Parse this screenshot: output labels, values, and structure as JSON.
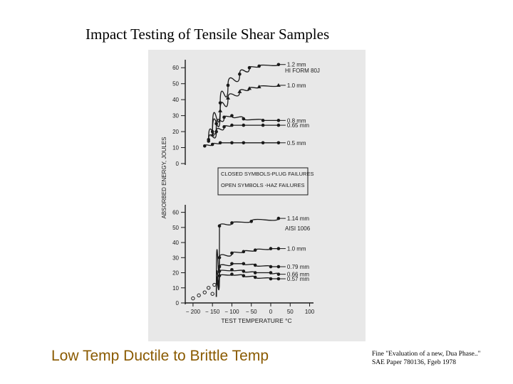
{
  "slide": {
    "title": "Impact Testing of Tensile Shear Samples",
    "caption": "Low Temp Ductile to Brittle Temp",
    "reference_line1": "Fine \"Evaluation of a new, Dua Phase..\"",
    "reference_line2": "SAE Paper 780136, Fgeb 1978",
    "colors": {
      "caption": "#8a5a00",
      "scan_background": "#e8e8e8",
      "ink": "#1a1a1a"
    }
  },
  "chart_data": [
    {
      "type": "line",
      "panel_label": "HI FORM 80J",
      "ylabel": "ABSORBED ENERGY, JOULES",
      "y_ticks": [
        "60",
        "50",
        "40",
        "30",
        "20",
        "10",
        "0"
      ],
      "ylim": [
        0,
        65
      ],
      "xlim": [
        -220,
        110
      ],
      "legend_notes": [
        "CLOSED SYMBOLS-PLUG FAILURES",
        "OPEN SYMBOLS -HAZ FAILURES"
      ],
      "series": [
        {
          "name": "1.2 mm",
          "x": [
            -150,
            -130,
            -110,
            -80,
            -55,
            -30,
            20
          ],
          "y": [
            20,
            38,
            49,
            56,
            60,
            61,
            62
          ]
        },
        {
          "name": "1.0 mm",
          "x": [
            -150,
            -130,
            -110,
            -80,
            -55,
            -30,
            20
          ],
          "y": [
            18,
            33,
            41,
            45,
            47,
            48,
            49
          ]
        },
        {
          "name": "0.8 mm",
          "x": [
            -160,
            -140,
            -120,
            -100,
            -70,
            -20,
            20
          ],
          "y": [
            15,
            25,
            29,
            30,
            28,
            27,
            27
          ]
        },
        {
          "name": "0.65 mm",
          "x": [
            -160,
            -140,
            -120,
            -100,
            -70,
            -20,
            20
          ],
          "y": [
            14,
            20,
            23,
            24,
            24,
            24,
            24
          ]
        },
        {
          "name": "0.5 mm",
          "x": [
            -170,
            -150,
            -130,
            -100,
            -70,
            -20,
            20
          ],
          "y": [
            11,
            12,
            13,
            13,
            13,
            13,
            13
          ]
        }
      ]
    },
    {
      "type": "line",
      "panel_label": "AISI 1006",
      "xlabel": "TEST TEMPERATURE °C",
      "y_ticks": [
        "60",
        "50",
        "40",
        "30",
        "20",
        "10",
        "0"
      ],
      "x_ticks": [
        "− 200",
        "− 150",
        "− 100",
        "− 50",
        "0",
        "50",
        "100"
      ],
      "ylim": [
        0,
        65
      ],
      "xlim": [
        -220,
        110
      ],
      "series": [
        {
          "name": "1.14 mm",
          "x": [
            -140,
            -132,
            -100,
            -50,
            20
          ],
          "y": [
            4,
            51,
            53,
            54,
            56
          ]
        },
        {
          "name": "1.0 mm",
          "x": [
            -140,
            -132,
            -100,
            -70,
            -40,
            0,
            20
          ],
          "y": [
            4,
            30,
            33,
            34,
            35,
            36,
            36
          ]
        },
        {
          "name": "0.79 mm",
          "x": [
            -140,
            -132,
            -100,
            -70,
            -40,
            0,
            20
          ],
          "y": [
            4,
            24,
            26,
            26,
            25,
            24,
            24
          ]
        },
        {
          "name": "0.66 mm",
          "x": [
            -140,
            -132,
            -100,
            -70,
            -40,
            0,
            20
          ],
          "y": [
            4,
            21,
            22,
            21,
            20,
            20,
            19
          ]
        },
        {
          "name": "0.57 mm",
          "x": [
            -140,
            -132,
            -100,
            -70,
            -40,
            0,
            20
          ],
          "y": [
            4,
            18,
            19,
            18,
            17,
            16,
            16
          ]
        }
      ],
      "low_temp_points": {
        "x": [
          -200,
          -185,
          -170,
          -160,
          -150,
          -145
        ],
        "y": [
          3,
          5,
          7,
          10,
          6,
          12
        ]
      }
    }
  ]
}
